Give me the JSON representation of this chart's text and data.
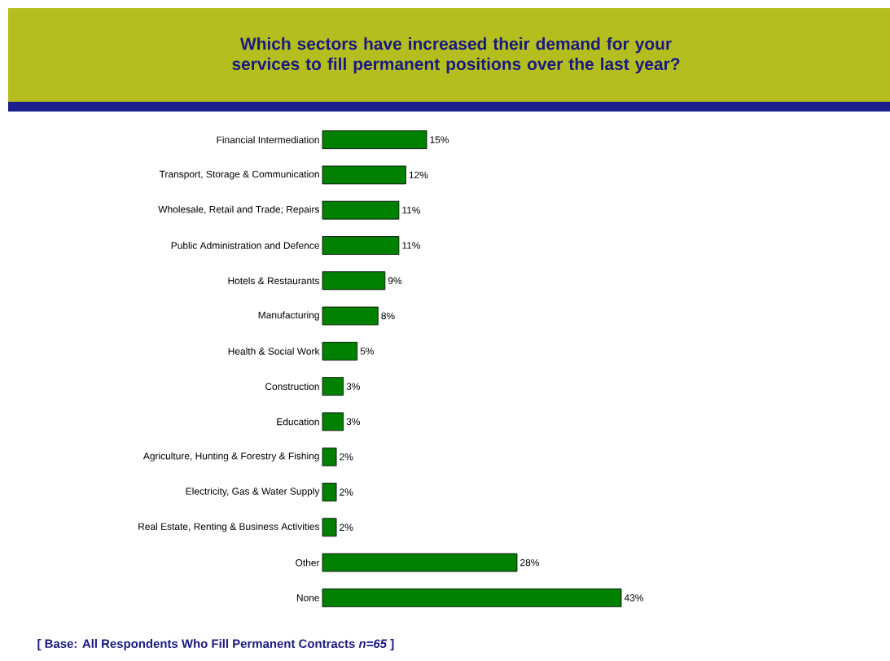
{
  "chart_data": {
    "type": "bar",
    "orientation": "horizontal",
    "title": "Which sectors have increased their demand for your services to fill permanent positions over the last year?",
    "categories": [
      "Financial Intermediation",
      "Transport, Storage & Communication",
      "Wholesale, Retail and Trade; Repairs",
      "Public Administration and Defence",
      "Hotels & Restaurants",
      "Manufacturing",
      "Health & Social Work",
      "Construction",
      "Education",
      "Agriculture, Hunting & Forestry & Fishing",
      "Electricity, Gas & Water Supply",
      "Real Estate, Renting & Business Activities",
      "Other",
      "None"
    ],
    "values": [
      15,
      12,
      11,
      11,
      9,
      8,
      5,
      3,
      3,
      2,
      2,
      2,
      28,
      43
    ],
    "value_labels": [
      "15%",
      "12%",
      "11%",
      "11%",
      "9%",
      "8%",
      "5%",
      "3%",
      "3%",
      "2%",
      "2%",
      "2%",
      "28%",
      "43%"
    ],
    "color": "#008000",
    "tick_labels": "y",
    "annotations": [
      "[ Base:  All Respondents Who Fill Permanent Contracts *n=65* ]"
    ]
  }
}
